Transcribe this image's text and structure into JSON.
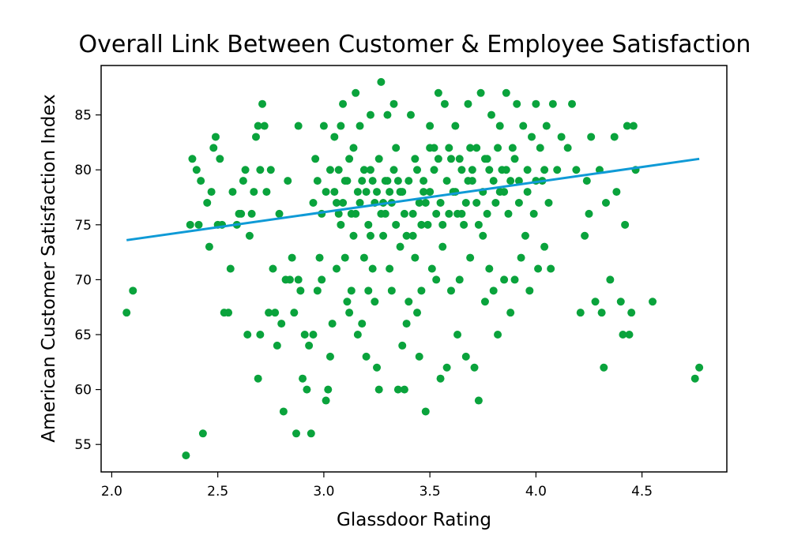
{
  "chart_data": {
    "type": "scatter",
    "title": "Overall Link Between Customer & Employee Satisfaction",
    "xlabel": "Glassdoor Rating",
    "ylabel": "American Customer Satisfaction Index",
    "xlim": [
      1.95,
      4.9
    ],
    "ylim": [
      52.5,
      89.5
    ],
    "xticks": [
      "2.0",
      "2.5",
      "3.0",
      "3.5",
      "4.0",
      "4.5"
    ],
    "yticks": [
      "55",
      "60",
      "65",
      "70",
      "75",
      "80",
      "85"
    ],
    "grid": false,
    "legend": "none",
    "colors": {
      "points": "#0aa33c",
      "trend": "#0f9ad6"
    },
    "trendline": {
      "x": [
        2.07,
        4.77
      ],
      "y": [
        73.6,
        81.0
      ]
    },
    "series": [
      {
        "points": [
          [
            2.07,
            67
          ],
          [
            2.1,
            69
          ],
          [
            2.35,
            54
          ],
          [
            2.37,
            75
          ],
          [
            2.38,
            81
          ],
          [
            2.4,
            80
          ],
          [
            2.41,
            75
          ],
          [
            2.42,
            79
          ],
          [
            2.43,
            56
          ],
          [
            2.45,
            77
          ],
          [
            2.46,
            73
          ],
          [
            2.47,
            78
          ],
          [
            2.48,
            82
          ],
          [
            2.49,
            83
          ],
          [
            2.5,
            75
          ],
          [
            2.51,
            81
          ],
          [
            2.52,
            75
          ],
          [
            2.53,
            67
          ],
          [
            2.55,
            67
          ],
          [
            2.56,
            71
          ],
          [
            2.57,
            78
          ],
          [
            2.59,
            75
          ],
          [
            2.6,
            76
          ],
          [
            2.61,
            76
          ],
          [
            2.62,
            79
          ],
          [
            2.63,
            80
          ],
          [
            2.64,
            65
          ],
          [
            2.65,
            74
          ],
          [
            2.66,
            76
          ],
          [
            2.67,
            78
          ],
          [
            2.68,
            83
          ],
          [
            2.69,
            61
          ],
          [
            2.69,
            84
          ],
          [
            2.7,
            65
          ],
          [
            2.7,
            80
          ],
          [
            2.71,
            86
          ],
          [
            2.72,
            84
          ],
          [
            2.73,
            78
          ],
          [
            2.74,
            67
          ],
          [
            2.75,
            80
          ],
          [
            2.76,
            71
          ],
          [
            2.77,
            67
          ],
          [
            2.78,
            64
          ],
          [
            2.79,
            76
          ],
          [
            2.8,
            66
          ],
          [
            2.81,
            58
          ],
          [
            2.82,
            70
          ],
          [
            2.83,
            79
          ],
          [
            2.84,
            70
          ],
          [
            2.85,
            72
          ],
          [
            2.86,
            67
          ],
          [
            2.87,
            56
          ],
          [
            2.88,
            84
          ],
          [
            2.88,
            70
          ],
          [
            2.89,
            69
          ],
          [
            2.9,
            61
          ],
          [
            2.91,
            65
          ],
          [
            2.92,
            60
          ],
          [
            2.93,
            64
          ],
          [
            2.94,
            56
          ],
          [
            2.95,
            65
          ],
          [
            2.96,
            81
          ],
          [
            2.97,
            69
          ],
          [
            2.98,
            72
          ],
          [
            2.99,
            70
          ],
          [
            3.0,
            84
          ],
          [
            3.01,
            59
          ],
          [
            3.02,
            60
          ],
          [
            3.03,
            63
          ],
          [
            3.04,
            66
          ],
          [
            3.05,
            83
          ],
          [
            3.06,
            71
          ],
          [
            3.07,
            76
          ],
          [
            3.08,
            84
          ],
          [
            3.09,
            86
          ],
          [
            3.1,
            72
          ],
          [
            3.11,
            68
          ],
          [
            3.12,
            67
          ],
          [
            3.13,
            69
          ],
          [
            3.14,
            82
          ],
          [
            3.15,
            87
          ],
          [
            3.16,
            65
          ],
          [
            3.17,
            84
          ],
          [
            3.18,
            66
          ],
          [
            3.19,
            72
          ],
          [
            3.2,
            63
          ],
          [
            3.21,
            69
          ],
          [
            3.22,
            85
          ],
          [
            3.23,
            71
          ],
          [
            3.24,
            68
          ],
          [
            3.25,
            62
          ],
          [
            3.26,
            60
          ],
          [
            3.27,
            88
          ],
          [
            3.28,
            74
          ],
          [
            3.29,
            79
          ],
          [
            3.3,
            85
          ],
          [
            3.31,
            71
          ],
          [
            3.32,
            69
          ],
          [
            3.33,
            86
          ],
          [
            3.34,
            82
          ],
          [
            3.35,
            60
          ],
          [
            3.36,
            73
          ],
          [
            3.37,
            64
          ],
          [
            3.38,
            60
          ],
          [
            3.39,
            66
          ],
          [
            3.4,
            68
          ],
          [
            3.41,
            85
          ],
          [
            3.42,
            74
          ],
          [
            3.43,
            72
          ],
          [
            3.44,
            67
          ],
          [
            3.45,
            63
          ],
          [
            3.46,
            69
          ],
          [
            3.47,
            78
          ],
          [
            3.48,
            58
          ],
          [
            3.49,
            75
          ],
          [
            3.5,
            84
          ],
          [
            3.51,
            71
          ],
          [
            3.52,
            82
          ],
          [
            3.53,
            70
          ],
          [
            3.54,
            87
          ],
          [
            3.55,
            61
          ],
          [
            3.56,
            73
          ],
          [
            3.57,
            86
          ],
          [
            3.58,
            62
          ],
          [
            3.59,
            76
          ],
          [
            3.6,
            69
          ],
          [
            3.61,
            78
          ],
          [
            3.62,
            84
          ],
          [
            3.63,
            65
          ],
          [
            3.64,
            70
          ],
          [
            3.65,
            80
          ],
          [
            3.66,
            75
          ],
          [
            3.67,
            63
          ],
          [
            3.68,
            86
          ],
          [
            3.69,
            72
          ],
          [
            3.7,
            79
          ],
          [
            3.71,
            62
          ],
          [
            3.72,
            82
          ],
          [
            3.73,
            59
          ],
          [
            3.74,
            87
          ],
          [
            3.75,
            74
          ],
          [
            3.76,
            68
          ],
          [
            3.77,
            81
          ],
          [
            3.78,
            71
          ],
          [
            3.79,
            85
          ],
          [
            3.8,
            69
          ],
          [
            3.81,
            77
          ],
          [
            3.82,
            65
          ],
          [
            3.83,
            84
          ],
          [
            3.84,
            80
          ],
          [
            3.85,
            70
          ],
          [
            3.86,
            87
          ],
          [
            3.87,
            76
          ],
          [
            3.88,
            67
          ],
          [
            3.89,
            82
          ],
          [
            3.9,
            70
          ],
          [
            3.91,
            86
          ],
          [
            3.92,
            79
          ],
          [
            3.93,
            72
          ],
          [
            3.94,
            84
          ],
          [
            3.95,
            74
          ],
          [
            3.96,
            80
          ],
          [
            3.97,
            69
          ],
          [
            3.98,
            83
          ],
          [
            3.99,
            76
          ],
          [
            4.0,
            86
          ],
          [
            4.01,
            71
          ],
          [
            4.02,
            82
          ],
          [
            4.03,
            79
          ],
          [
            4.04,
            73
          ],
          [
            4.05,
            84
          ],
          [
            4.06,
            77
          ],
          [
            4.07,
            71
          ],
          [
            4.08,
            86
          ],
          [
            4.1,
            80
          ],
          [
            4.12,
            83
          ],
          [
            4.15,
            82
          ],
          [
            4.17,
            86
          ],
          [
            4.19,
            80
          ],
          [
            4.21,
            67
          ],
          [
            4.23,
            74
          ],
          [
            4.24,
            79
          ],
          [
            4.25,
            76
          ],
          [
            4.26,
            83
          ],
          [
            4.28,
            68
          ],
          [
            4.3,
            80
          ],
          [
            4.31,
            67
          ],
          [
            4.32,
            62
          ],
          [
            4.33,
            77
          ],
          [
            4.35,
            70
          ],
          [
            4.37,
            83
          ],
          [
            4.38,
            78
          ],
          [
            4.4,
            68
          ],
          [
            4.41,
            65
          ],
          [
            4.42,
            75
          ],
          [
            4.43,
            84
          ],
          [
            4.44,
            65
          ],
          [
            4.45,
            67
          ],
          [
            4.46,
            84
          ],
          [
            4.47,
            80
          ],
          [
            4.55,
            68
          ],
          [
            4.75,
            61
          ],
          [
            4.77,
            62
          ],
          [
            3.25,
            78
          ],
          [
            3.28,
            77
          ],
          [
            3.3,
            79
          ],
          [
            3.33,
            80
          ],
          [
            3.36,
            78
          ],
          [
            3.38,
            76
          ],
          [
            3.4,
            79
          ],
          [
            3.43,
            81
          ],
          [
            3.45,
            77
          ],
          [
            3.47,
            79
          ],
          [
            3.5,
            78
          ],
          [
            3.52,
            80
          ],
          [
            3.55,
            77
          ],
          [
            3.58,
            79
          ],
          [
            3.6,
            81
          ],
          [
            3.62,
            78
          ],
          [
            3.65,
            76
          ],
          [
            3.68,
            79
          ],
          [
            3.7,
            80
          ],
          [
            3.72,
            77
          ],
          [
            3.75,
            78
          ],
          [
            3.78,
            80
          ],
          [
            3.8,
            79
          ],
          [
            3.83,
            78
          ],
          [
            3.15,
            76
          ],
          [
            3.18,
            79
          ],
          [
            3.2,
            78
          ],
          [
            3.22,
            80
          ],
          [
            3.24,
            77
          ],
          [
            3.27,
            76
          ],
          [
            3.32,
            77
          ],
          [
            3.35,
            79
          ],
          [
            3.37,
            78
          ],
          [
            3.42,
            76
          ],
          [
            3.44,
            80
          ],
          [
            3.48,
            77
          ],
          [
            3.05,
            78
          ],
          [
            3.07,
            80
          ],
          [
            3.09,
            77
          ],
          [
            3.11,
            79
          ],
          [
            3.13,
            76
          ],
          [
            3.16,
            78
          ],
          [
            3.19,
            80
          ],
          [
            3.21,
            75
          ],
          [
            3.23,
            79
          ],
          [
            3.26,
            81
          ],
          [
            3.29,
            76
          ],
          [
            3.31,
            78
          ],
          [
            2.95,
            77
          ],
          [
            2.97,
            79
          ],
          [
            2.99,
            76
          ],
          [
            3.01,
            78
          ],
          [
            3.03,
            80
          ],
          [
            3.06,
            77
          ],
          [
            3.08,
            75
          ],
          [
            3.1,
            79
          ],
          [
            3.12,
            81
          ],
          [
            3.14,
            74
          ],
          [
            3.17,
            77
          ],
          [
            3.22,
            74
          ],
          [
            3.34,
            75
          ],
          [
            3.39,
            74
          ],
          [
            3.46,
            75
          ],
          [
            3.53,
            76
          ],
          [
            3.56,
            75
          ],
          [
            3.63,
            76
          ],
          [
            3.67,
            77
          ],
          [
            3.73,
            75
          ],
          [
            3.77,
            76
          ],
          [
            3.85,
            78
          ],
          [
            3.88,
            79
          ],
          [
            3.92,
            77
          ],
          [
            3.96,
            78
          ],
          [
            4.0,
            79
          ],
          [
            4.04,
            80
          ],
          [
            3.9,
            81
          ],
          [
            3.86,
            80
          ],
          [
            3.82,
            82
          ],
          [
            3.76,
            81
          ],
          [
            3.69,
            82
          ],
          [
            3.64,
            81
          ],
          [
            3.59,
            82
          ],
          [
            3.54,
            81
          ],
          [
            3.5,
            82
          ]
        ]
      }
    ]
  }
}
